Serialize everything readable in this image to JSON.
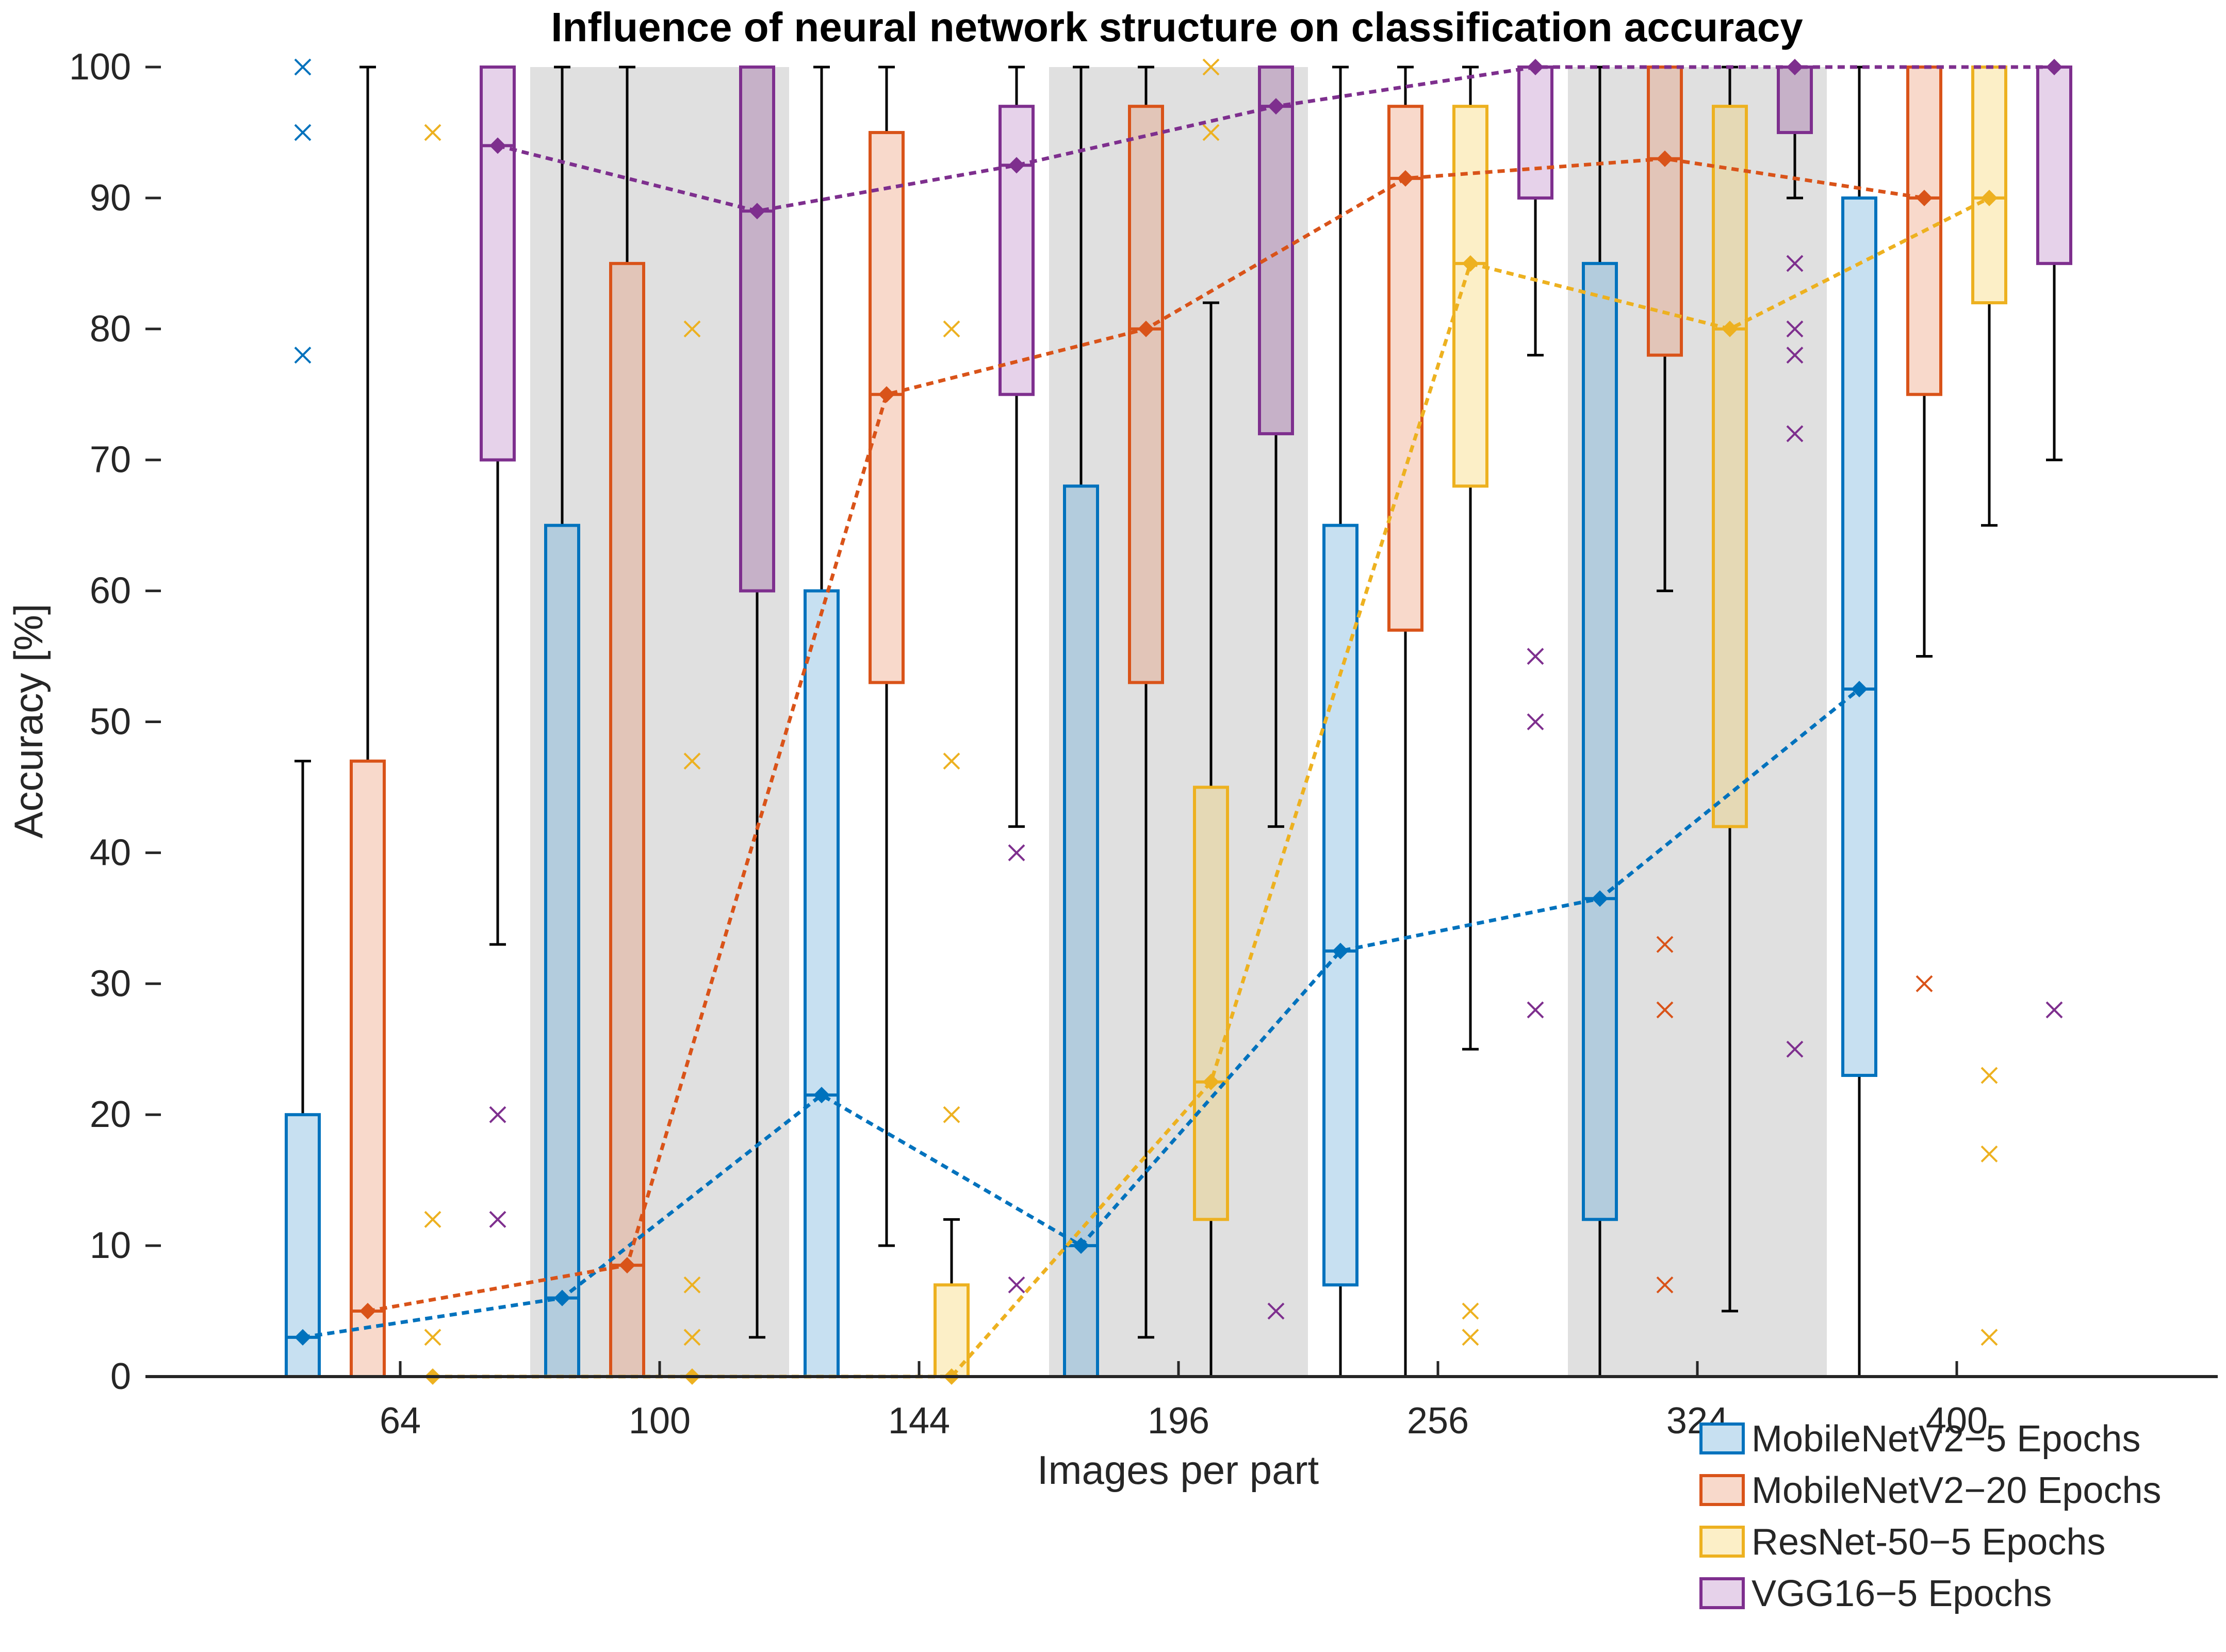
{
  "chart_data": {
    "type": "box",
    "title": "Influence of neural network structure on classification accuracy",
    "xlabel": "Images per part",
    "ylabel": "Accuracy [%]",
    "ylim": [
      0,
      100
    ],
    "yticks": [
      0,
      10,
      20,
      30,
      40,
      50,
      60,
      70,
      80,
      90,
      100
    ],
    "categories": [
      "64",
      "100",
      "144",
      "196",
      "256",
      "324",
      "400"
    ],
    "shaded_categories": [
      "100",
      "196",
      "324"
    ],
    "series": [
      {
        "name": "MobileNetV2−5 Epochs",
        "color": "#0072BD",
        "fill": "#C7E0F1",
        "fill_shaded": "#B3CCDD",
        "boxes": [
          {
            "q1": 0,
            "q3": 20,
            "median": 3,
            "whisker_low": 0,
            "whisker_high": 47,
            "outliers": [
              78,
              95,
              100
            ]
          },
          {
            "q1": 0,
            "q3": 65,
            "median": 6,
            "whisker_low": 0,
            "whisker_high": 100,
            "outliers": []
          },
          {
            "q1": 0,
            "q3": 60,
            "median": 21.5,
            "whisker_low": 0,
            "whisker_high": 100,
            "outliers": []
          },
          {
            "q1": 0,
            "q3": 68,
            "median": 10,
            "whisker_low": 0,
            "whisker_high": 100,
            "outliers": []
          },
          {
            "q1": 7,
            "q3": 65,
            "median": 32.5,
            "whisker_low": 0,
            "whisker_high": 100,
            "outliers": []
          },
          {
            "q1": 12,
            "q3": 85,
            "median": 36.5,
            "whisker_low": 0,
            "whisker_high": 100,
            "outliers": []
          },
          {
            "q1": 23,
            "q3": 90,
            "median": 52.5,
            "whisker_low": 0,
            "whisker_high": 100,
            "outliers": []
          }
        ]
      },
      {
        "name": "MobileNetV2−20 Epochs",
        "color": "#D95319",
        "fill": "#F8D9CB",
        "fill_shaded": "#E2C5B8",
        "boxes": [
          {
            "q1": 0,
            "q3": 47,
            "median": 5,
            "whisker_low": 0,
            "whisker_high": 100,
            "outliers": []
          },
          {
            "q1": 0,
            "q3": 85,
            "median": 8.5,
            "whisker_low": 0,
            "whisker_high": 100,
            "outliers": []
          },
          {
            "q1": 53,
            "q3": 95,
            "median": 75,
            "whisker_low": 10,
            "whisker_high": 100,
            "outliers": []
          },
          {
            "q1": 53,
            "q3": 97,
            "median": 80,
            "whisker_low": 3,
            "whisker_high": 100,
            "outliers": []
          },
          {
            "q1": 57,
            "q3": 97,
            "median": 91.5,
            "whisker_low": 0,
            "whisker_high": 100,
            "outliers": []
          },
          {
            "q1": 78,
            "q3": 100,
            "median": 93,
            "whisker_low": 60,
            "whisker_high": 100,
            "outliers": [
              7,
              28,
              33
            ]
          },
          {
            "q1": 75,
            "q3": 100,
            "median": 90,
            "whisker_low": 55,
            "whisker_high": 100,
            "outliers": [
              30
            ]
          }
        ]
      },
      {
        "name": "ResNet-50−5 Epochs",
        "color": "#EDB120",
        "fill": "#FCEFC7",
        "fill_shaded": "#E5D9B5",
        "boxes": [
          {
            "q1": 0,
            "q3": 0,
            "median": 0,
            "whisker_low": 0,
            "whisker_high": 0,
            "outliers": [
              3,
              12,
              95
            ]
          },
          {
            "q1": 0,
            "q3": 0,
            "median": 0,
            "whisker_low": 0,
            "whisker_high": 0,
            "outliers": [
              3,
              7,
              47,
              80
            ]
          },
          {
            "q1": 0,
            "q3": 7,
            "median": 0,
            "whisker_low": 0,
            "whisker_high": 12,
            "outliers": [
              20,
              47,
              80
            ]
          },
          {
            "q1": 12,
            "q3": 45,
            "median": 22.5,
            "whisker_low": 0,
            "whisker_high": 82,
            "outliers": [
              95,
              100
            ]
          },
          {
            "q1": 68,
            "q3": 97,
            "median": 85,
            "whisker_low": 25,
            "whisker_high": 100,
            "outliers": [
              3,
              5
            ]
          },
          {
            "q1": 42,
            "q3": 97,
            "median": 80,
            "whisker_low": 5,
            "whisker_high": 100,
            "outliers": []
          },
          {
            "q1": 82,
            "q3": 100,
            "median": 90,
            "whisker_low": 65,
            "whisker_high": 100,
            "outliers": [
              3,
              17,
              23
            ]
          }
        ]
      },
      {
        "name": "VGG16−5 Epochs",
        "color": "#7E2F8E",
        "fill": "#E6D2EA",
        "fill_shaded": "#C6B1C8",
        "boxes": [
          {
            "q1": 70,
            "q3": 100,
            "median": 94,
            "whisker_low": 33,
            "whisker_high": 100,
            "outliers": [
              12,
              20
            ]
          },
          {
            "q1": 60,
            "q3": 100,
            "median": 89,
            "whisker_low": 3,
            "whisker_high": 100,
            "outliers": []
          },
          {
            "q1": 75,
            "q3": 97,
            "median": 92.5,
            "whisker_low": 42,
            "whisker_high": 100,
            "outliers": [
              7,
              40
            ]
          },
          {
            "q1": 72,
            "q3": 100,
            "median": 97,
            "whisker_low": 42,
            "whisker_high": 100,
            "outliers": [
              5
            ]
          },
          {
            "q1": 90,
            "q3": 100,
            "median": 100,
            "whisker_low": 78,
            "whisker_high": 100,
            "outliers": [
              28,
              50,
              55
            ]
          },
          {
            "q1": 95,
            "q3": 100,
            "median": 100,
            "whisker_low": 90,
            "whisker_high": 100,
            "outliers": [
              25,
              72,
              78,
              80,
              85
            ]
          },
          {
            "q1": 85,
            "q3": 100,
            "median": 100,
            "whisker_low": 70,
            "whisker_high": 100,
            "outliers": [
              28
            ]
          }
        ]
      }
    ],
    "legend_position": "below-right"
  }
}
